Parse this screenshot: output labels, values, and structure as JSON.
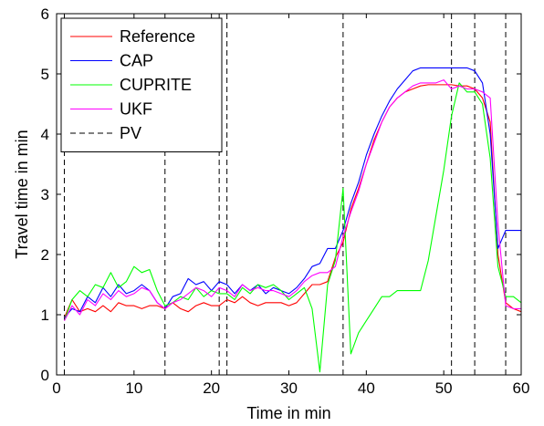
{
  "chart_data": {
    "type": "line",
    "xlabel": "Time in min",
    "ylabel": "Travel time in min",
    "xlim": [
      0,
      60
    ],
    "ylim": [
      0,
      6
    ],
    "xticks": [
      "0",
      "10",
      "20",
      "30",
      "40",
      "50",
      "60"
    ],
    "yticks": [
      "0",
      "1",
      "2",
      "3",
      "4",
      "5",
      "6"
    ],
    "grid": false,
    "legend_position": "top-left",
    "series": [
      {
        "name": "Reference",
        "color": "#ff0000",
        "dash": "solid",
        "points": [
          [
            1,
            0.95
          ],
          [
            2,
            1.25
          ],
          [
            3,
            1.05
          ],
          [
            4,
            1.1
          ],
          [
            5,
            1.05
          ],
          [
            6,
            1.15
          ],
          [
            7,
            1.05
          ],
          [
            8,
            1.2
          ],
          [
            9,
            1.15
          ],
          [
            10,
            1.15
          ],
          [
            11,
            1.1
          ],
          [
            12,
            1.15
          ],
          [
            13,
            1.15
          ],
          [
            14,
            1.1
          ],
          [
            15,
            1.2
          ],
          [
            16,
            1.1
          ],
          [
            17,
            1.05
          ],
          [
            18,
            1.15
          ],
          [
            19,
            1.2
          ],
          [
            20,
            1.15
          ],
          [
            21,
            1.15
          ],
          [
            22,
            1.25
          ],
          [
            23,
            1.2
          ],
          [
            24,
            1.3
          ],
          [
            25,
            1.2
          ],
          [
            26,
            1.15
          ],
          [
            27,
            1.2
          ],
          [
            28,
            1.2
          ],
          [
            29,
            1.2
          ],
          [
            30,
            1.15
          ],
          [
            31,
            1.2
          ],
          [
            32,
            1.35
          ],
          [
            33,
            1.5
          ],
          [
            34,
            1.5
          ],
          [
            35,
            1.55
          ],
          [
            36,
            1.95
          ],
          [
            37,
            2.2
          ],
          [
            38,
            2.75
          ],
          [
            39,
            3.1
          ],
          [
            40,
            3.5
          ],
          [
            41,
            3.9
          ],
          [
            42,
            4.2
          ],
          [
            43,
            4.45
          ],
          [
            44,
            4.6
          ],
          [
            45,
            4.7
          ],
          [
            46,
            4.75
          ],
          [
            47,
            4.8
          ],
          [
            48,
            4.82
          ],
          [
            49,
            4.82
          ],
          [
            50,
            4.82
          ],
          [
            51,
            4.82
          ],
          [
            52,
            4.8
          ],
          [
            53,
            4.8
          ],
          [
            54,
            4.75
          ],
          [
            55,
            4.6
          ],
          [
            56,
            4.2
          ],
          [
            57,
            2.0
          ],
          [
            58,
            1.2
          ],
          [
            59,
            1.1
          ],
          [
            60,
            1.05
          ]
        ]
      },
      {
        "name": "CAP",
        "color": "#0000ff",
        "dash": "solid",
        "points": [
          [
            1,
            0.95
          ],
          [
            2,
            1.1
          ],
          [
            3,
            1.05
          ],
          [
            4,
            1.3
          ],
          [
            5,
            1.2
          ],
          [
            6,
            1.45
          ],
          [
            7,
            1.3
          ],
          [
            8,
            1.5
          ],
          [
            9,
            1.35
          ],
          [
            10,
            1.4
          ],
          [
            11,
            1.5
          ],
          [
            12,
            1.4
          ],
          [
            13,
            1.2
          ],
          [
            14,
            1.1
          ],
          [
            15,
            1.3
          ],
          [
            16,
            1.35
          ],
          [
            17,
            1.6
          ],
          [
            18,
            1.5
          ],
          [
            19,
            1.55
          ],
          [
            20,
            1.4
          ],
          [
            21,
            1.55
          ],
          [
            22,
            1.5
          ],
          [
            23,
            1.35
          ],
          [
            24,
            1.5
          ],
          [
            25,
            1.4
          ],
          [
            26,
            1.5
          ],
          [
            27,
            1.35
          ],
          [
            28,
            1.45
          ],
          [
            29,
            1.4
          ],
          [
            30,
            1.35
          ],
          [
            31,
            1.45
          ],
          [
            32,
            1.6
          ],
          [
            33,
            1.8
          ],
          [
            34,
            1.85
          ],
          [
            35,
            2.1
          ],
          [
            36,
            2.1
          ],
          [
            37,
            2.4
          ],
          [
            38,
            2.85
          ],
          [
            39,
            3.2
          ],
          [
            40,
            3.65
          ],
          [
            41,
            4.0
          ],
          [
            42,
            4.3
          ],
          [
            43,
            4.55
          ],
          [
            44,
            4.75
          ],
          [
            45,
            4.9
          ],
          [
            46,
            5.05
          ],
          [
            47,
            5.1
          ],
          [
            48,
            5.1
          ],
          [
            49,
            5.1
          ],
          [
            50,
            5.1
          ],
          [
            51,
            5.1
          ],
          [
            52,
            5.1
          ],
          [
            53,
            5.1
          ],
          [
            54,
            5.05
          ],
          [
            55,
            4.85
          ],
          [
            56,
            4.0
          ],
          [
            57,
            2.1
          ],
          [
            58,
            2.4
          ],
          [
            59,
            2.4
          ],
          [
            60,
            2.4
          ]
        ]
      },
      {
        "name": "CUPRITE",
        "color": "#00ff00",
        "dash": "solid",
        "points": [
          [
            1,
            0.9
          ],
          [
            2,
            1.25
          ],
          [
            3,
            1.4
          ],
          [
            4,
            1.3
          ],
          [
            5,
            1.5
          ],
          [
            6,
            1.45
          ],
          [
            7,
            1.7
          ],
          [
            8,
            1.45
          ],
          [
            9,
            1.55
          ],
          [
            10,
            1.8
          ],
          [
            11,
            1.7
          ],
          [
            12,
            1.75
          ],
          [
            13,
            1.4
          ],
          [
            14,
            1.15
          ],
          [
            15,
            1.2
          ],
          [
            16,
            1.3
          ],
          [
            17,
            1.25
          ],
          [
            18,
            1.45
          ],
          [
            19,
            1.3
          ],
          [
            20,
            1.4
          ],
          [
            21,
            1.35
          ],
          [
            22,
            1.35
          ],
          [
            23,
            1.25
          ],
          [
            24,
            1.45
          ],
          [
            25,
            1.35
          ],
          [
            26,
            1.5
          ],
          [
            27,
            1.45
          ],
          [
            28,
            1.5
          ],
          [
            29,
            1.4
          ],
          [
            30,
            1.25
          ],
          [
            31,
            1.35
          ],
          [
            32,
            1.45
          ],
          [
            33,
            1.1
          ],
          [
            34,
            0.05
          ],
          [
            35,
            1.5
          ],
          [
            36,
            1.9
          ],
          [
            37,
            3.1
          ],
          [
            38,
            0.35
          ],
          [
            39,
            0.7
          ],
          [
            40,
            0.9
          ],
          [
            41,
            1.1
          ],
          [
            42,
            1.3
          ],
          [
            43,
            1.3
          ],
          [
            44,
            1.4
          ],
          [
            45,
            1.4
          ],
          [
            46,
            1.4
          ],
          [
            47,
            1.4
          ],
          [
            48,
            1.9
          ],
          [
            49,
            2.65
          ],
          [
            50,
            3.4
          ],
          [
            51,
            4.3
          ],
          [
            52,
            4.85
          ],
          [
            53,
            4.7
          ],
          [
            54,
            4.7
          ],
          [
            55,
            4.5
          ],
          [
            56,
            3.6
          ],
          [
            57,
            1.8
          ],
          [
            58,
            1.3
          ],
          [
            59,
            1.3
          ],
          [
            60,
            1.2
          ]
        ]
      },
      {
        "name": "UKF",
        "color": "#ff00ff",
        "dash": "solid",
        "points": [
          [
            1,
            0.9
          ],
          [
            2,
            1.15
          ],
          [
            3,
            1.0
          ],
          [
            4,
            1.25
          ],
          [
            5,
            1.15
          ],
          [
            6,
            1.35
          ],
          [
            7,
            1.25
          ],
          [
            8,
            1.4
          ],
          [
            9,
            1.3
          ],
          [
            10,
            1.35
          ],
          [
            11,
            1.45
          ],
          [
            12,
            1.4
          ],
          [
            13,
            1.2
          ],
          [
            14,
            1.1
          ],
          [
            15,
            1.2
          ],
          [
            16,
            1.25
          ],
          [
            17,
            1.35
          ],
          [
            18,
            1.45
          ],
          [
            19,
            1.4
          ],
          [
            20,
            1.3
          ],
          [
            21,
            1.45
          ],
          [
            22,
            1.4
          ],
          [
            23,
            1.3
          ],
          [
            24,
            1.5
          ],
          [
            25,
            1.4
          ],
          [
            26,
            1.45
          ],
          [
            27,
            1.4
          ],
          [
            28,
            1.4
          ],
          [
            29,
            1.35
          ],
          [
            30,
            1.3
          ],
          [
            31,
            1.4
          ],
          [
            32,
            1.55
          ],
          [
            33,
            1.65
          ],
          [
            34,
            1.7
          ],
          [
            35,
            1.7
          ],
          [
            36,
            1.8
          ],
          [
            37,
            2.3
          ],
          [
            38,
            2.7
          ],
          [
            39,
            3.05
          ],
          [
            40,
            3.5
          ],
          [
            41,
            3.85
          ],
          [
            42,
            4.2
          ],
          [
            43,
            4.45
          ],
          [
            44,
            4.6
          ],
          [
            45,
            4.7
          ],
          [
            46,
            4.8
          ],
          [
            47,
            4.85
          ],
          [
            48,
            4.85
          ],
          [
            49,
            4.85
          ],
          [
            50,
            4.9
          ],
          [
            51,
            4.75
          ],
          [
            52,
            4.8
          ],
          [
            53,
            4.75
          ],
          [
            54,
            4.75
          ],
          [
            55,
            4.7
          ],
          [
            56,
            4.6
          ],
          [
            57,
            2.5
          ],
          [
            58,
            1.15
          ],
          [
            59,
            1.1
          ],
          [
            60,
            1.1
          ]
        ]
      }
    ],
    "pv_legend": {
      "name": "PV",
      "color": "#000000",
      "dash": "dashed"
    },
    "pv_x": [
      1,
      14,
      21,
      22,
      37,
      51,
      54,
      58
    ]
  }
}
